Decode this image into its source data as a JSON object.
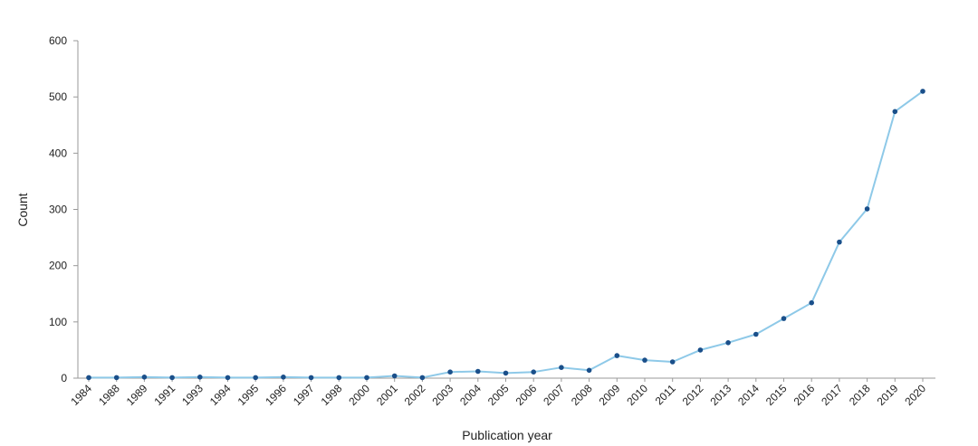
{
  "chart_data": {
    "type": "line",
    "title": "",
    "xlabel": "Publication year",
    "ylabel": "Count",
    "ylim": [
      0,
      600
    ],
    "yticks": [
      0,
      100,
      200,
      300,
      400,
      500,
      600
    ],
    "grid": false,
    "legend": "none",
    "line_color": "#8ec9e8",
    "marker_color": "#1a4f8a",
    "axis_color": "#999999",
    "categories": [
      "1984",
      "1988",
      "1989",
      "1991",
      "1993",
      "1994",
      "1995",
      "1996",
      "1997",
      "1998",
      "2000",
      "2001",
      "2002",
      "2003",
      "2004",
      "2005",
      "2006",
      "2007",
      "2008",
      "2009",
      "2010",
      "2011",
      "2012",
      "2013",
      "2014",
      "2015",
      "2016",
      "2017",
      "2018",
      "2019",
      "2020"
    ],
    "series": [
      {
        "values": [
          1,
          1,
          2,
          1,
          2,
          1,
          1,
          2,
          1,
          1,
          1,
          4,
          1,
          11,
          12,
          9,
          11,
          19,
          14,
          40,
          32,
          29,
          50,
          63,
          78,
          106,
          134,
          242,
          301,
          474,
          510
        ]
      }
    ]
  }
}
